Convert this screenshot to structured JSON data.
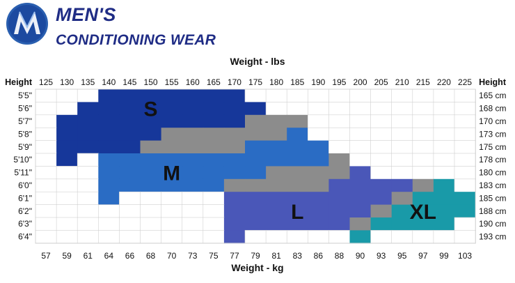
{
  "brand": {
    "line1": "MEN'S",
    "line2": "CONDITIONING WEAR"
  },
  "colors": {
    "S": "#16379a",
    "M": "#2a6cc4",
    "L": "#4a57b8",
    "XL": "#199aa8",
    "overlap": "#8c8c8c",
    "grid": "#d0d0d0",
    "brand": "#1f2c85"
  },
  "chart_data": {
    "type": "heatmap",
    "title_top": "Weight - lbs",
    "title_bottom": "Weight - kg",
    "row_header_left": "Height",
    "row_header_right": "Height",
    "weight_lbs": [
      "125",
      "130",
      "135",
      "140",
      "145",
      "150",
      "155",
      "160",
      "165",
      "170",
      "175",
      "180",
      "185",
      "190",
      "195",
      "200",
      "205",
      "210",
      "215",
      "220",
      "225"
    ],
    "weight_kg": [
      "57",
      "59",
      "61",
      "64",
      "66",
      "68",
      "70",
      "73",
      "75",
      "77",
      "79",
      "81",
      "83",
      "86",
      "88",
      "90",
      "93",
      "95",
      "97",
      "99",
      "103"
    ],
    "heights_ft": [
      "5'5\"",
      "5'6\"",
      "5'7\"",
      "5'8\"",
      "5'9\"",
      "5'10\"",
      "5'11\"",
      "6'0\"",
      "6'1\"",
      "6'2\"",
      "6'3\"",
      "6'4\""
    ],
    "heights_cm": [
      "165 cm",
      "168 cm",
      "170 cm",
      "173 cm",
      "175 cm",
      "178 cm",
      "180 cm",
      "183 cm",
      "185 cm",
      "188 cm",
      "190 cm",
      "193 cm"
    ],
    "size_labels": [
      "S",
      "M",
      "L",
      "XL"
    ],
    "cells_legend": "one string per height row, one character per weight column: '.' none, S, M, L, X (XL), G (overlap)",
    "cells": [
      "...SSSSSSS...........",
      "..SSSSSSSSS..........",
      ".SSSSSSSSSGGG........",
      ".SSSSSGGGGGGM........",
      ".SSSSGGGGGMMMM.......",
      ".S.MMMMMMMMMMMG......",
      "...MMMMMMMMGGGGL.....",
      "...MMMMMMGGGGGLLLLGX.",
      "...M.....LLLLLLLLGXXX",
      ".........LLLLLLLGXXXX",
      ".........LLLLLLGXXXX.",
      ".........L.....X....."
    ],
    "zone_label_cells": {
      "S": [
        1,
        5
      ],
      "M": [
        6,
        6
      ],
      "L": [
        9,
        12
      ],
      "XL": [
        9,
        18
      ]
    }
  }
}
